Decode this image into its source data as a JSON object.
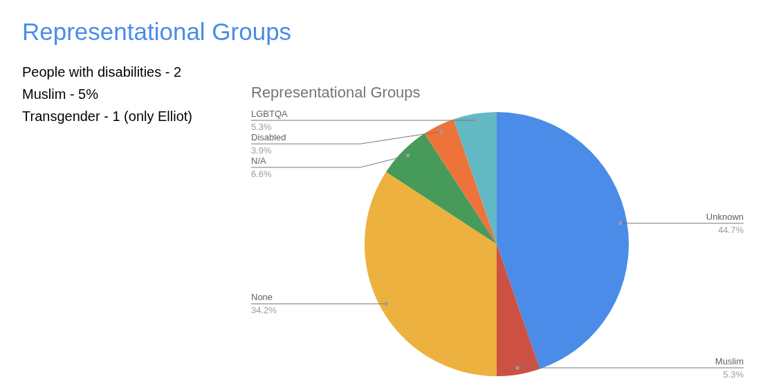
{
  "chart_data": {
    "type": "pie",
    "title": "Representational Groups",
    "subtitle": "Representational Groups",
    "annotations": [
      "People with disabilities - 2",
      "Muslim - 5%",
      "Transgender - 1 (only Elliot)"
    ],
    "categories": [
      "Unknown",
      "Muslim",
      "None",
      "N/A",
      "Disabled",
      "LGBTQA"
    ],
    "values": [
      44.7,
      5.3,
      34.2,
      6.6,
      3.9,
      5.3
    ],
    "colors": [
      "#4a8ce8",
      "#cd5142",
      "#ecb13f",
      "#469b5a",
      "#ed733a",
      "#62b9c3"
    ],
    "value_labels": [
      "44.7%",
      "5.3%",
      "34.2%",
      "6.6%",
      "3.9%",
      "5.3%"
    ]
  }
}
